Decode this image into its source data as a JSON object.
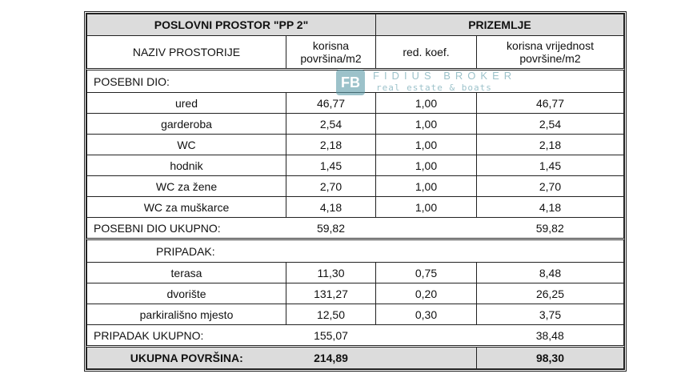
{
  "header": {
    "left": "POSLOVNI PROSTOR \"PP 2\"",
    "right": "PRIZEMLJE"
  },
  "columns": {
    "name": "NAZIV PROSTORIJE",
    "area_l1": "korisna",
    "area_l2": "površina/m2",
    "coef": "red. koef.",
    "value_l1": "korisna vrijednost",
    "value_l2": "površine/m2"
  },
  "posebni": {
    "label": "POSEBNI DIO:",
    "rows": [
      [
        "ured",
        "46,77",
        "1,00",
        "46,77"
      ],
      [
        "garderoba",
        "2,54",
        "1,00",
        "2,54"
      ],
      [
        "WC",
        "2,18",
        "1,00",
        "2,18"
      ],
      [
        "hodnik",
        "1,45",
        "1,00",
        "1,45"
      ],
      [
        "WC za žene",
        "2,70",
        "1,00",
        "2,70"
      ],
      [
        "WC za muškarce",
        "4,18",
        "1,00",
        "4,18"
      ]
    ],
    "total_label": "POSEBNI DIO UKUPNO:",
    "total_area": "59,82",
    "total_value": "59,82"
  },
  "pripadak": {
    "label": "PRIPADAK:",
    "rows": [
      [
        "terasa",
        "11,30",
        "0,75",
        "8,48"
      ],
      [
        "dvorište",
        "131,27",
        "0,20",
        "26,25"
      ],
      [
        "parkirališno mjesto",
        "12,50",
        "0,30",
        "3,75"
      ]
    ],
    "total_label": "PRIPADAK UKUPNO:",
    "total_area": "155,07",
    "total_value": "38,48"
  },
  "grand": {
    "label": "UKUPNA POVRŠINA:",
    "area": "214,89",
    "value": "98,30"
  },
  "watermark": {
    "logo": "FB",
    "name": "FIDIUS BROKER",
    "tagline": "real estate & boats",
    "color": "#5b9aa8"
  }
}
